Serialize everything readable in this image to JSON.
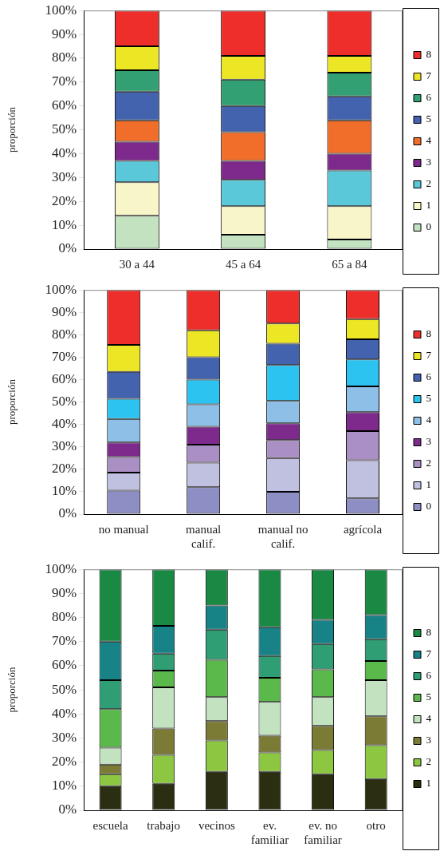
{
  "chart_data": [
    {
      "type": "bar",
      "stacked": true,
      "ylabel": "proporción",
      "categories": [
        "30 a 44",
        "45 a 64",
        "65 a 84"
      ],
      "ylim": [
        0,
        100
      ],
      "yticks": [
        {
          "value": 0,
          "label": "0%"
        },
        {
          "value": 10,
          "label": "10%"
        },
        {
          "value": 20,
          "label": "20%"
        },
        {
          "value": 30,
          "label": "30%"
        },
        {
          "value": 40,
          "label": "40%"
        },
        {
          "value": 50,
          "label": "50%"
        },
        {
          "value": 60,
          "label": "60%"
        },
        {
          "value": 70,
          "label": "70%"
        },
        {
          "value": 80,
          "label": "80%"
        },
        {
          "value": 90,
          "label": "90%"
        },
        {
          "value": 100,
          "label": "100%"
        }
      ],
      "grid": false,
      "legend": "right",
      "series": [
        {
          "name": "0",
          "color": "#c3e3c0",
          "values": [
            14,
            6,
            4
          ]
        },
        {
          "name": "1",
          "color": "#f8f6c8",
          "values": [
            14,
            12,
            14
          ]
        },
        {
          "name": "2",
          "color": "#5bc8da",
          "values": [
            9,
            11,
            15
          ]
        },
        {
          "name": "3",
          "color": "#7d2a8c",
          "values": [
            8,
            8,
            7
          ]
        },
        {
          "name": "4",
          "color": "#f06d2a",
          "values": [
            9,
            12,
            14
          ]
        },
        {
          "name": "5",
          "color": "#4363ae",
          "values": [
            12,
            11,
            10
          ]
        },
        {
          "name": "6",
          "color": "#32a072",
          "values": [
            9,
            11,
            10
          ]
        },
        {
          "name": "7",
          "color": "#ece625",
          "values": [
            10,
            10,
            7
          ]
        },
        {
          "name": "8",
          "color": "#ee2e2a",
          "values": [
            15,
            19,
            19
          ]
        }
      ]
    },
    {
      "type": "bar",
      "stacked": true,
      "ylabel": "proporción",
      "categories": [
        "no manual",
        "manual\ncalif.",
        "manual no\ncalif.",
        "agrícola"
      ],
      "ylim": [
        0,
        100
      ],
      "yticks": [
        {
          "value": 0,
          "label": "0%"
        },
        {
          "value": 10,
          "label": "10%"
        },
        {
          "value": 20,
          "label": "20%"
        },
        {
          "value": 30,
          "label": "30%"
        },
        {
          "value": 40,
          "label": "40%"
        },
        {
          "value": 50,
          "label": "50%"
        },
        {
          "value": 60,
          "label": "60%"
        },
        {
          "value": 70,
          "label": "70%"
        },
        {
          "value": 80,
          "label": "80%"
        },
        {
          "value": 90,
          "label": "90%"
        },
        {
          "value": 100,
          "label": "100%"
        }
      ],
      "grid": false,
      "legend": "right",
      "series": [
        {
          "name": "0",
          "color": "#8c8ec4",
          "values": [
            10.5,
            12,
            10,
            7
          ]
        },
        {
          "name": "1",
          "color": "#c0c0e0",
          "values": [
            8,
            11,
            15,
            17
          ]
        },
        {
          "name": "2",
          "color": "#a98fc3",
          "values": [
            7,
            8,
            8,
            13
          ]
        },
        {
          "name": "3",
          "color": "#7d2a8c",
          "values": [
            6.5,
            8,
            7.5,
            8.5
          ]
        },
        {
          "name": "4",
          "color": "#8ebfe6",
          "values": [
            10.5,
            10,
            10,
            11.5
          ]
        },
        {
          "name": "5",
          "color": "#2cc3f0",
          "values": [
            9,
            11,
            16,
            12
          ]
        },
        {
          "name": "6",
          "color": "#4363ae",
          "values": [
            12,
            10,
            9.5,
            9
          ]
        },
        {
          "name": "7",
          "color": "#ece625",
          "values": [
            12,
            12,
            9,
            9
          ]
        },
        {
          "name": "8",
          "color": "#ee2e2a",
          "values": [
            24.5,
            18,
            15,
            13
          ]
        }
      ]
    },
    {
      "type": "bar",
      "stacked": true,
      "ylabel": "proporción",
      "categories": [
        "escuela",
        "trabajo",
        "vecinos",
        "ev.\nfamiliar",
        "ev. no\nfamiliar",
        "otro"
      ],
      "ylim": [
        0,
        100
      ],
      "yticks": [
        {
          "value": 0,
          "label": "0%"
        },
        {
          "value": 10,
          "label": "10%"
        },
        {
          "value": 20,
          "label": "20%"
        },
        {
          "value": 30,
          "label": "30%"
        },
        {
          "value": 40,
          "label": "40%"
        },
        {
          "value": 50,
          "label": "50%"
        },
        {
          "value": 60,
          "label": "60%"
        },
        {
          "value": 70,
          "label": "70%"
        },
        {
          "value": 80,
          "label": "80%"
        },
        {
          "value": 90,
          "label": "90%"
        },
        {
          "value": 100,
          "label": "100%"
        }
      ],
      "grid": false,
      "legend": "right",
      "series": [
        {
          "name": "1",
          "color": "#2b2e10",
          "values": [
            10,
            11,
            16,
            16,
            15,
            13
          ]
        },
        {
          "name": "2",
          "color": "#8dc641",
          "values": [
            5,
            12,
            13,
            8,
            10,
            14
          ]
        },
        {
          "name": "3",
          "color": "#7b7b35",
          "values": [
            4,
            11,
            8,
            7,
            10,
            12
          ]
        },
        {
          "name": "4",
          "color": "#c3e3c0",
          "values": [
            7,
            17,
            10,
            14,
            12,
            15
          ]
        },
        {
          "name": "5",
          "color": "#5ab94a",
          "values": [
            16,
            7,
            15.5,
            10,
            11.5,
            8
          ]
        },
        {
          "name": "6",
          "color": "#2f9e74",
          "values": [
            12,
            7,
            12.5,
            9,
            10.5,
            9
          ]
        },
        {
          "name": "7",
          "color": "#178387",
          "values": [
            16,
            11.5,
            10,
            12,
            10,
            10
          ]
        },
        {
          "name": "8",
          "color": "#1a8944",
          "values": [
            30,
            23.5,
            15,
            24,
            21,
            19
          ]
        }
      ]
    }
  ]
}
